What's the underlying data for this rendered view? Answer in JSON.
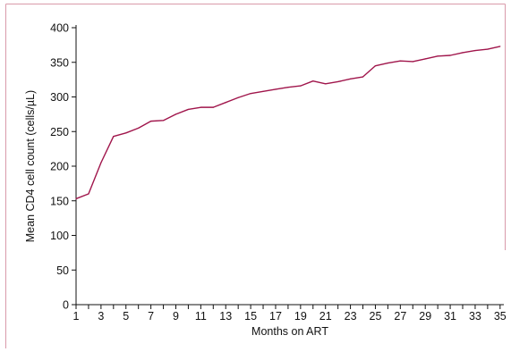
{
  "chart_data": {
    "type": "line",
    "title": "",
    "xlabel": "Months on ART",
    "ylabel": "Mean CD4 cell count (cells/µL)",
    "xlim": [
      1,
      35.3
    ],
    "ylim": [
      0,
      400
    ],
    "x_ticks": [
      1,
      2,
      3,
      4,
      5,
      6,
      7,
      8,
      9,
      10,
      11,
      12,
      13,
      14,
      15,
      16,
      17,
      18,
      19,
      20,
      21,
      22,
      23,
      24,
      25,
      26,
      27,
      28,
      29,
      30,
      31,
      32,
      33,
      34,
      35
    ],
    "x_tick_labels": [
      "1",
      "3",
      "5",
      "7",
      "9",
      "11",
      "13",
      "15",
      "17",
      "19",
      "21",
      "23",
      "25",
      "27",
      "29",
      "31",
      "33",
      "35"
    ],
    "y_ticks": [
      0,
      50,
      100,
      150,
      200,
      250,
      300,
      350,
      400
    ],
    "y_tick_labels": [
      "0",
      "50",
      "100",
      "150",
      "200",
      "250",
      "300",
      "350",
      "400"
    ],
    "grid": false,
    "legend": "none",
    "series": [
      {
        "color": "#a0154b",
        "x": [
          1,
          2,
          3,
          4,
          5,
          6,
          7,
          8,
          9,
          10,
          11,
          12,
          13,
          14,
          15,
          16,
          17,
          18,
          19,
          20,
          21,
          22,
          23,
          24,
          25,
          26,
          27,
          28,
          29,
          30,
          31,
          32,
          33,
          34,
          35
        ],
        "y": [
          153,
          160,
          205,
          243,
          248,
          255,
          265,
          266,
          275,
          282,
          285,
          285,
          292,
          299,
          305,
          308,
          311,
          314,
          316,
          323,
          319,
          322,
          326,
          329,
          345,
          349,
          352,
          351,
          355,
          359,
          360,
          364,
          367,
          369,
          373
        ]
      }
    ],
    "colors": {
      "frame": "#d99aaa",
      "axis": "#111111",
      "line": "#a0154b"
    }
  }
}
